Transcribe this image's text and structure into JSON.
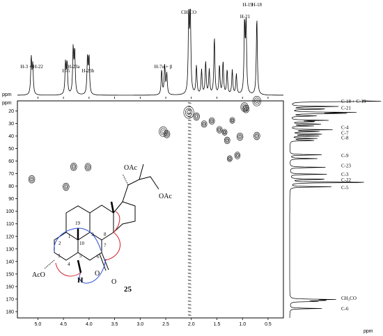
{
  "chart_data": {
    "type": "heatmap",
    "subtype": "2D NMR HSQC spectrum",
    "x_axis": {
      "label": "ppm",
      "range": [
        5.4,
        0.2
      ],
      "ticks": [
        5.0,
        4.5,
        4.0,
        3.5,
        3.0,
        2.5,
        2.0,
        1.5,
        1.0,
        0.5
      ]
    },
    "y_axis": {
      "label": "ppm",
      "range": [
        12,
        185
      ],
      "ticks": [
        20,
        30,
        40,
        50,
        60,
        70,
        80,
        90,
        100,
        110,
        120,
        130,
        140,
        150,
        160,
        170,
        180
      ]
    },
    "proton_peaks": [
      {
        "ppm": 5.13,
        "height": 0.45
      },
      {
        "ppm": 5.1,
        "height": 0.35
      },
      {
        "ppm": 4.46,
        "height": 0.38
      },
      {
        "ppm": 4.43,
        "height": 0.38
      },
      {
        "ppm": 4.31,
        "height": 0.55
      },
      {
        "ppm": 4.28,
        "height": 0.52
      },
      {
        "ppm": 4.03,
        "height": 0.45
      },
      {
        "ppm": 4.0,
        "height": 0.45
      },
      {
        "ppm": 2.58,
        "height": 0.3
      },
      {
        "ppm": 2.52,
        "height": 0.35
      },
      {
        "ppm": 2.48,
        "height": 0.25
      },
      {
        "ppm": 2.05,
        "height": 1.0
      },
      {
        "ppm": 2.02,
        "height": 1.0
      },
      {
        "ppm": 1.9,
        "height": 0.35
      },
      {
        "ppm": 1.8,
        "height": 0.3
      },
      {
        "ppm": 1.72,
        "height": 0.4
      },
      {
        "ppm": 1.65,
        "height": 0.3
      },
      {
        "ppm": 1.55,
        "height": 0.7
      },
      {
        "ppm": 1.45,
        "height": 0.35
      },
      {
        "ppm": 1.38,
        "height": 0.4
      },
      {
        "ppm": 1.3,
        "height": 0.3
      },
      {
        "ppm": 1.2,
        "height": 0.3
      },
      {
        "ppm": 1.12,
        "height": 0.25
      },
      {
        "ppm": 0.96,
        "height": 0.85
      },
      {
        "ppm": 0.93,
        "height": 0.85
      },
      {
        "ppm": 0.72,
        "height": 0.95
      }
    ],
    "proton_labels": [
      {
        "text": "H-3 + H-22",
        "ppm": 5.12,
        "row": 0
      },
      {
        "text": "H-5",
        "ppm": 4.45,
        "row": 1
      },
      {
        "text": "H-23a",
        "ppm": 4.3,
        "row": 0
      },
      {
        "text": "H-23b",
        "ppm": 4.02,
        "row": 1
      },
      {
        "text": "H-7α + β",
        "ppm": 2.55,
        "row": 0
      },
      {
        "text": "CH₃CO",
        "ppm": 2.05,
        "row": 2
      },
      {
        "text": "H-21",
        "ppm": 0.95,
        "row": 3
      },
      {
        "text": "H-19",
        "ppm": 0.9,
        "row": 4
      },
      {
        "text": "H-18",
        "ppm": 0.72,
        "row": 5
      }
    ],
    "carbon_peaks": [
      {
        "ppm": 12.1,
        "height": 0.7
      },
      {
        "ppm": 12.4,
        "height": 0.65
      },
      {
        "ppm": 16.5,
        "height": 0.55
      },
      {
        "ppm": 18.5,
        "height": 0.45
      },
      {
        "ppm": 21.2,
        "height": 0.7
      },
      {
        "ppm": 22.0,
        "height": 0.55
      },
      {
        "ppm": 24.0,
        "height": 0.3
      },
      {
        "ppm": 27.5,
        "height": 0.4
      },
      {
        "ppm": 28.5,
        "height": 0.3
      },
      {
        "ppm": 30.5,
        "height": 0.35
      },
      {
        "ppm": 32.0,
        "height": 0.25
      },
      {
        "ppm": 35.0,
        "height": 0.45
      },
      {
        "ppm": 36.5,
        "height": 0.35
      },
      {
        "ppm": 38.5,
        "height": 0.4
      },
      {
        "ppm": 40.0,
        "height": 0.3
      },
      {
        "ppm": 42.0,
        "height": 0.3
      },
      {
        "ppm": 43.5,
        "height": 0.3
      },
      {
        "ppm": 55.0,
        "height": 0.35
      },
      {
        "ppm": 58.0,
        "height": 0.3
      },
      {
        "ppm": 65.0,
        "height": 0.4
      },
      {
        "ppm": 70.5,
        "height": 0.4
      },
      {
        "ppm": 74.5,
        "height": 0.45
      },
      {
        "ppm": 77.0,
        "height": 1.0
      },
      {
        "ppm": 80.5,
        "height": 0.45
      },
      {
        "ppm": 170.3,
        "height": 0.45
      },
      {
        "ppm": 171.0,
        "height": 0.4
      },
      {
        "ppm": 171.8,
        "height": 0.3
      },
      {
        "ppm": 177.5,
        "height": 0.35
      }
    ],
    "carbon_labels": [
      {
        "text": "C-18 + C-19",
        "ppm": 12.2
      },
      {
        "text": "C-21",
        "ppm": 17.5
      },
      {
        "text": "C-4",
        "ppm": 33.0
      },
      {
        "text": "C-7",
        "ppm": 37.5
      },
      {
        "text": "C-8",
        "ppm": 41.5
      },
      {
        "text": "C-9",
        "ppm": 55.5
      },
      {
        "text": "C-23",
        "ppm": 63.5
      },
      {
        "text": "C-3",
        "ppm": 70.5
      },
      {
        "text": "C-22",
        "ppm": 75.0
      },
      {
        "text": "C-5",
        "ppm": 81.0
      },
      {
        "text": "CH₃CO",
        "ppm": 169.3
      },
      {
        "text": "C-6",
        "ppm": 177.5
      }
    ],
    "cross_peaks": [
      {
        "x": 5.12,
        "y": 74.5,
        "size": 1.0
      },
      {
        "x": 4.45,
        "y": 80.5,
        "size": 1.0
      },
      {
        "x": 4.3,
        "y": 64.5,
        "size": 1.0
      },
      {
        "x": 4.02,
        "y": 64.8,
        "size": 1.0
      },
      {
        "x": 2.55,
        "y": 36.5,
        "size": 1.3
      },
      {
        "x": 2.48,
        "y": 38.5,
        "size": 1.0
      },
      {
        "x": 2.05,
        "y": 21.2,
        "size": 1.6
      },
      {
        "x": 1.9,
        "y": 24.5,
        "size": 1.0
      },
      {
        "x": 1.75,
        "y": 30.5,
        "size": 0.9
      },
      {
        "x": 1.6,
        "y": 28.0,
        "size": 0.9
      },
      {
        "x": 1.45,
        "y": 35.0,
        "size": 0.9
      },
      {
        "x": 1.35,
        "y": 37.0,
        "size": 0.8
      },
      {
        "x": 1.2,
        "y": 27.5,
        "size": 0.8
      },
      {
        "x": 1.05,
        "y": 40.5,
        "size": 1.0
      },
      {
        "x": 1.3,
        "y": 43.5,
        "size": 0.9
      },
      {
        "x": 1.1,
        "y": 55.5,
        "size": 0.9
      },
      {
        "x": 1.25,
        "y": 58.0,
        "size": 0.8
      },
      {
        "x": 0.96,
        "y": 17.0,
        "size": 1.2
      },
      {
        "x": 0.93,
        "y": 18.5,
        "size": 1.0
      },
      {
        "x": 0.72,
        "y": 12.2,
        "size": 1.3
      },
      {
        "x": 0.72,
        "y": 40.0,
        "size": 1.0
      }
    ]
  },
  "structure": {
    "compound_number": "25",
    "acetoxy_left": "AcO",
    "acetoxy_chain_1": "OAc",
    "acetoxy_chain_2": "OAc",
    "ring_oxygen": "O",
    "ketone_oxygen": "O",
    "hydrogen": "H",
    "atom_numbers": [
      "19",
      "1",
      "2",
      "3",
      "4",
      "5",
      "6",
      "7",
      "8",
      "9",
      "10"
    ]
  }
}
